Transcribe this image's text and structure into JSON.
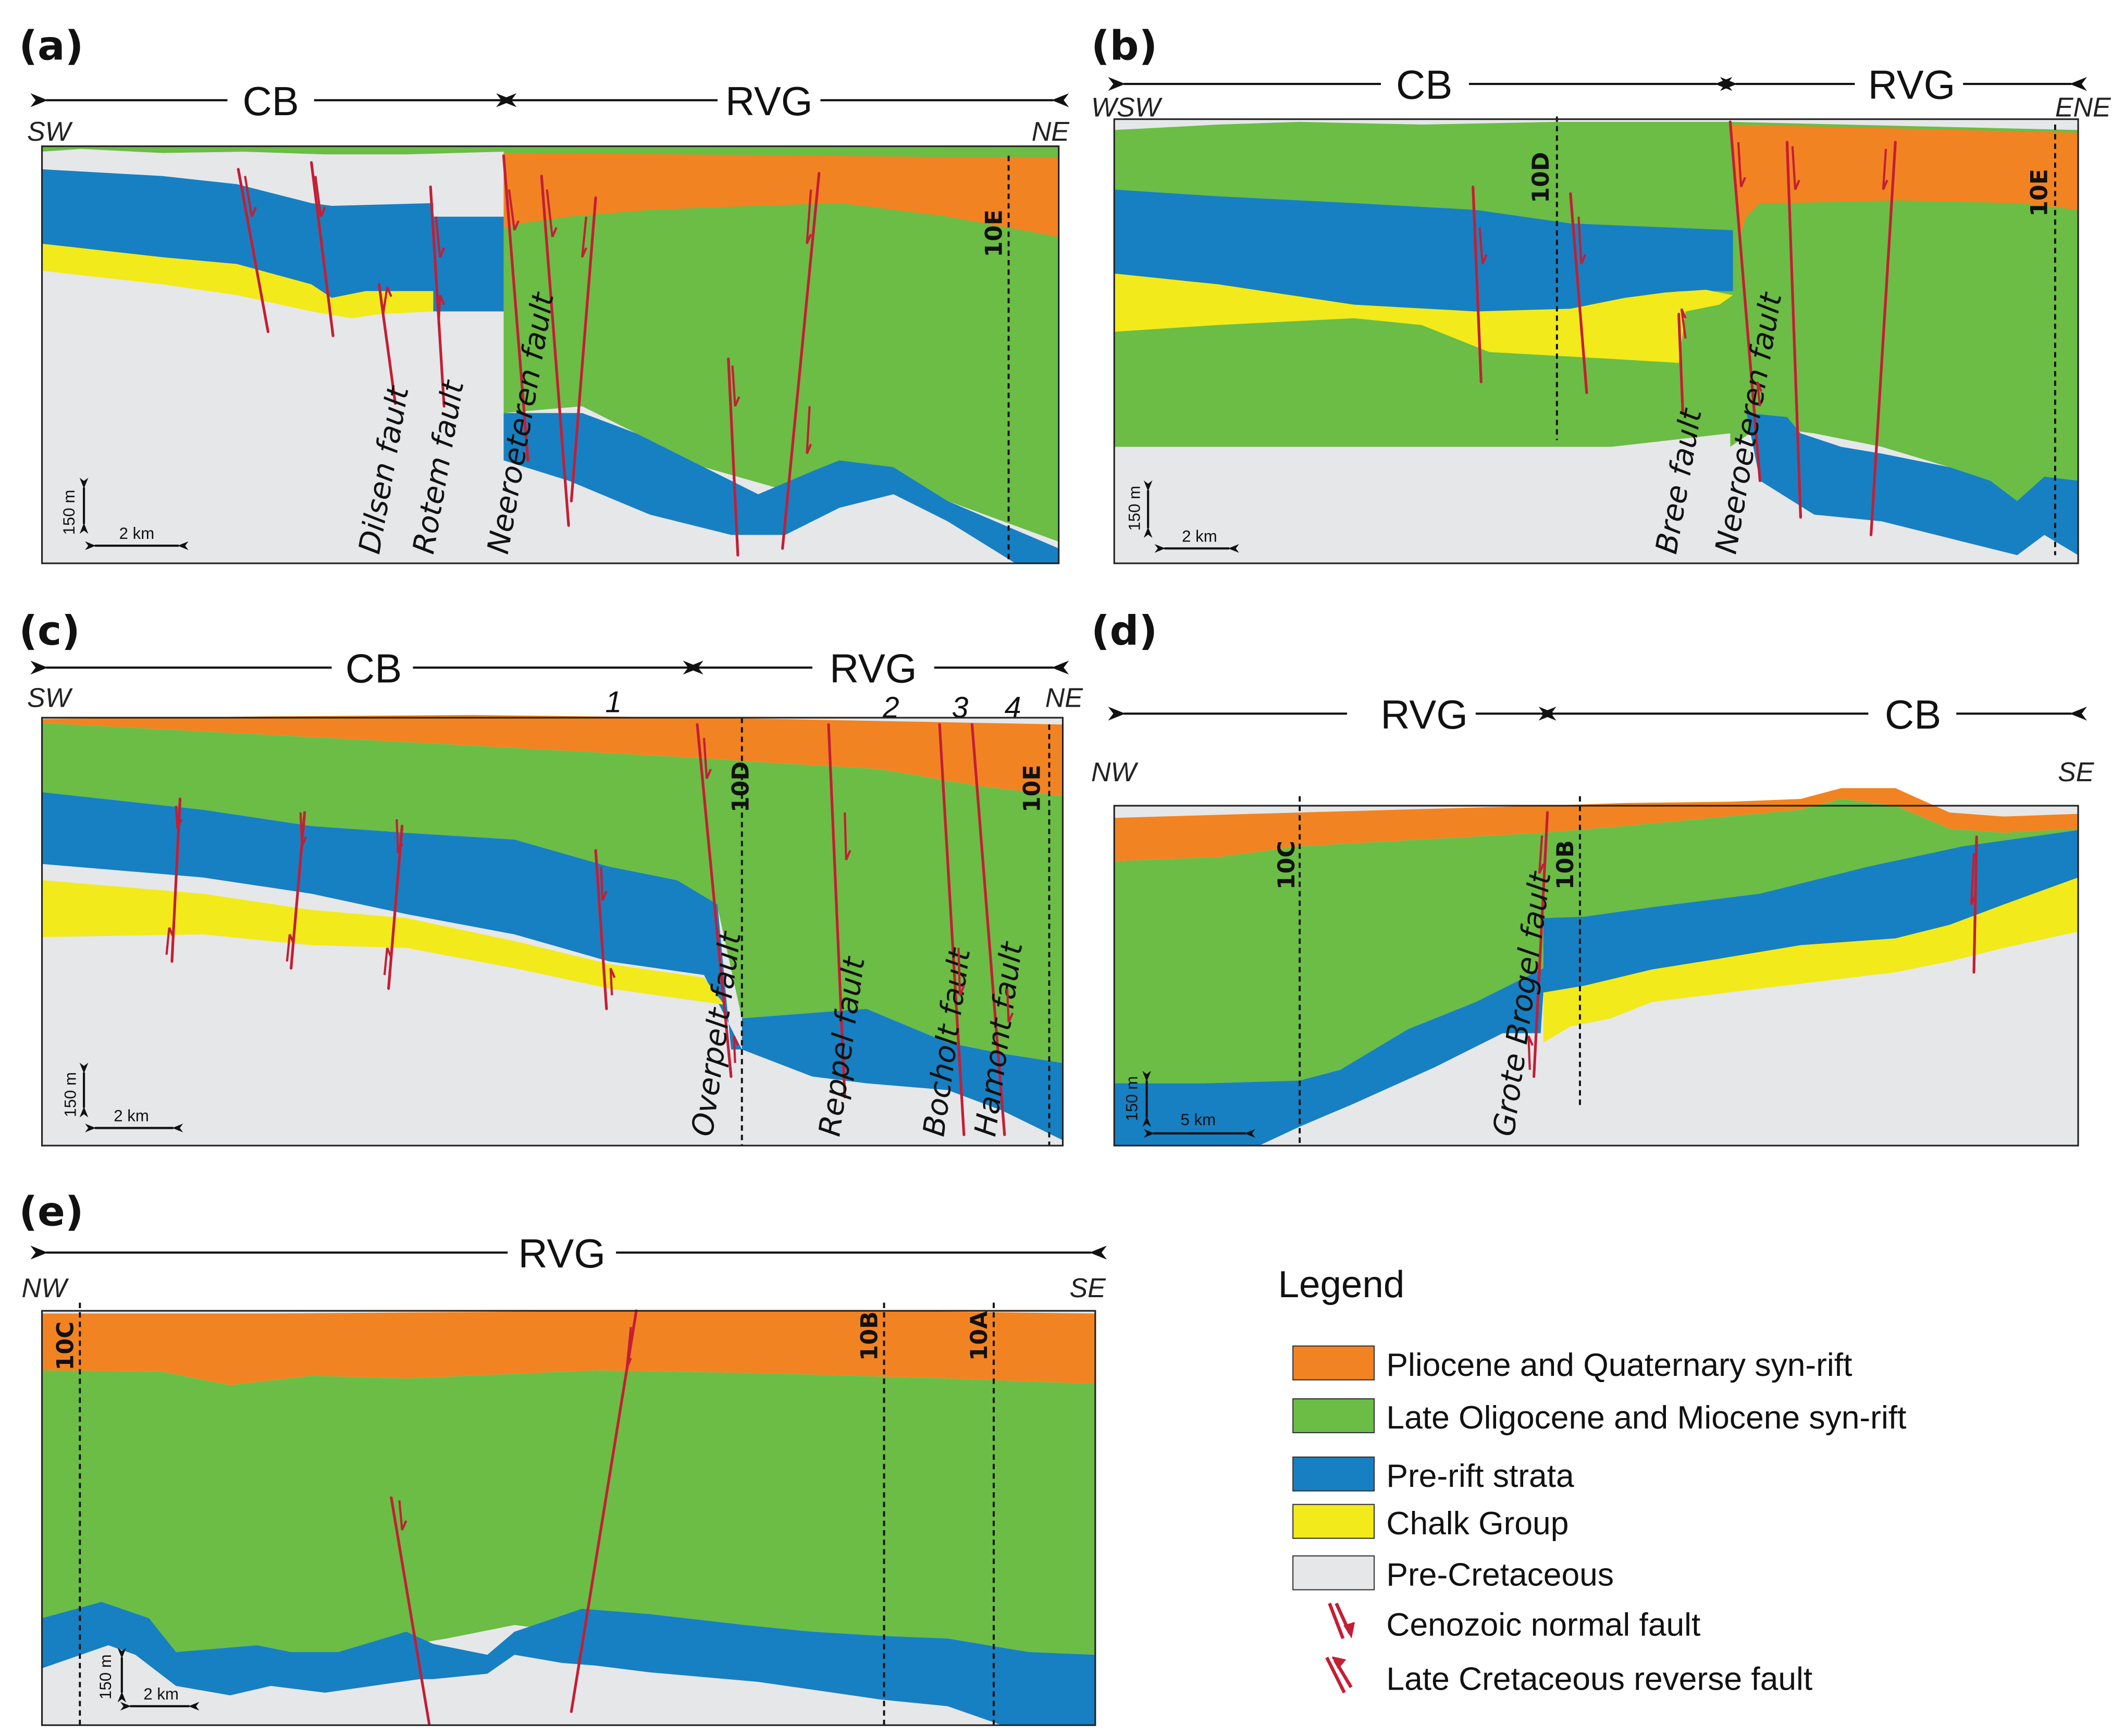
{
  "colors": {
    "pliocene_quaternary": "#f28322",
    "oligocene_miocene": "#6bbd45",
    "pre_rift": "#1780c2",
    "chalk": "#f2ea1a",
    "pre_cretaceous": "#e6e7e9",
    "fault": "#c41e35"
  },
  "panels": [
    {
      "id": "a",
      "label": "(a)",
      "regions": [
        {
          "text": "CB"
        },
        {
          "text": "RVG"
        }
      ],
      "dir_left": "SW",
      "dir_right": "NE",
      "wells": [
        "10E"
      ],
      "fault_names": [
        "Dilsen fault",
        "Rotem fault",
        "Neeroeteren fault"
      ],
      "fault_numbers": [],
      "scale_v": "150 m",
      "scale_h": "2 km"
    },
    {
      "id": "b",
      "label": "(b)",
      "regions": [
        {
          "text": "CB"
        },
        {
          "text": "RVG"
        }
      ],
      "dir_left": "WSW",
      "dir_right": "ENE",
      "wells": [
        "10D",
        "10E"
      ],
      "fault_names": [
        "Bree fault",
        "Neeroeteren fault"
      ],
      "fault_numbers": [],
      "scale_v": "150 m",
      "scale_h": "2 km"
    },
    {
      "id": "c",
      "label": "(c)",
      "regions": [
        {
          "text": "CB"
        },
        {
          "text": "RVG"
        }
      ],
      "dir_left": "SW",
      "dir_right": "NE",
      "wells": [
        "10D",
        "10E"
      ],
      "fault_names": [
        "Overpelt fault",
        "Reppel fault",
        "Bocholt fault",
        "Hamont fault"
      ],
      "fault_numbers": [
        "1",
        "2",
        "3",
        "4"
      ],
      "scale_v": "150 m",
      "scale_h": "2 km"
    },
    {
      "id": "d",
      "label": "(d)",
      "regions": [
        {
          "text": "RVG"
        },
        {
          "text": "CB"
        }
      ],
      "dir_left": "NW",
      "dir_right": "SE",
      "wells": [
        "10C",
        "10B"
      ],
      "fault_names": [
        "Grote Brogel fault"
      ],
      "fault_numbers": [],
      "scale_v": "150 m",
      "scale_h": "5 km"
    },
    {
      "id": "e",
      "label": "(e)",
      "regions": [
        {
          "text": "RVG"
        }
      ],
      "dir_left": "NW",
      "dir_right": "SE",
      "wells": [
        "10C",
        "10B",
        "10A"
      ],
      "fault_names": [],
      "fault_numbers": [],
      "scale_v": "150 m",
      "scale_h": "2 km"
    }
  ],
  "legend": {
    "title": "Legend",
    "items": [
      {
        "label": "Pliocene and Quaternary syn-rift",
        "kind": "swatch",
        "color_key": "pliocene_quaternary"
      },
      {
        "label": "Late Oligocene and Miocene syn-rift",
        "kind": "swatch",
        "color_key": "oligocene_miocene"
      },
      {
        "label": "Pre-rift strata",
        "kind": "swatch",
        "color_key": "pre_rift"
      },
      {
        "label": "Chalk Group",
        "kind": "swatch",
        "color_key": "chalk"
      },
      {
        "label": "Pre-Cretaceous",
        "kind": "swatch",
        "color_key": "pre_cretaceous"
      },
      {
        "label": "Cenozoic normal fault",
        "kind": "normal-fault-symbol"
      },
      {
        "label": "Late Cretaceous reverse fault",
        "kind": "reverse-fault-symbol"
      }
    ]
  }
}
